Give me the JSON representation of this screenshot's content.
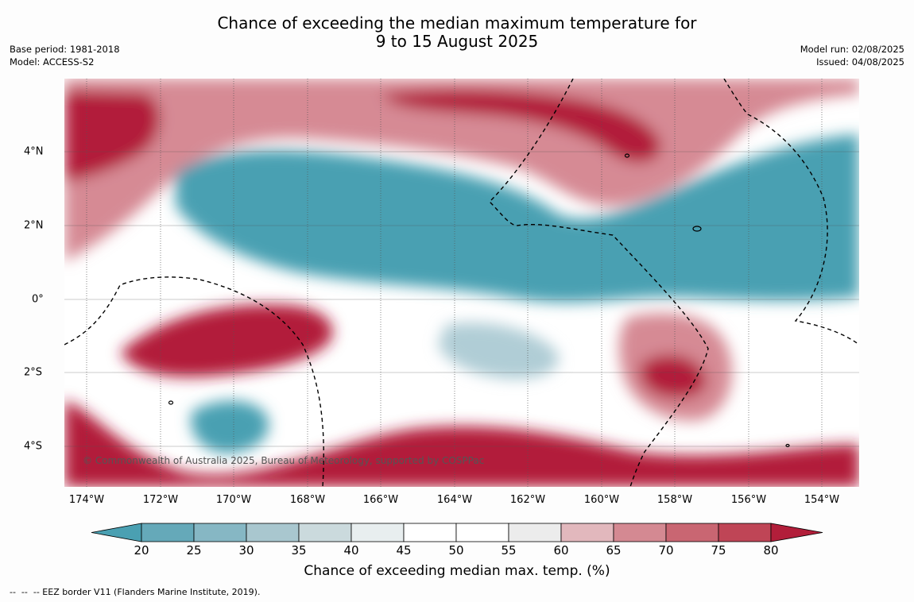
{
  "title": {
    "line1": "Chance of exceeding the median maximum temperature for",
    "line2": "9 to 15 August 2025"
  },
  "meta_left": {
    "base_period": "Base period: 1981-2018",
    "model": "Model: ACCESS-S2"
  },
  "meta_right": {
    "model_run": "Model run: 02/08/2025",
    "issued": "Issued: 04/08/2025"
  },
  "map": {
    "lon_labels": [
      "174°W",
      "172°W",
      "170°W",
      "168°W",
      "166°W",
      "164°W",
      "162°W",
      "160°W",
      "158°W",
      "156°W",
      "154°W"
    ],
    "lat_labels": [
      "4°N",
      "2°N",
      "0°",
      "2°S",
      "4°S"
    ],
    "copyright": "© Commonwealth of Australia 2025, Bureau of Meteorology, supported by COSPPac",
    "colors": {
      "below": "#4aa0b2",
      "low": "#b0cdd6",
      "neutral": "#ffffff",
      "high": "#d68a94",
      "above": "#b21e3a"
    }
  },
  "colorbar": {
    "ticks": [
      "20",
      "25",
      "30",
      "35",
      "40",
      "45",
      "50",
      "55",
      "60",
      "65",
      "70",
      "75",
      "80"
    ],
    "colors": [
      "#65a9b9",
      "#86b7c4",
      "#a9c7cf",
      "#cbdadd",
      "#e8eeef",
      "#ffffff",
      "#ffffff",
      "#ececec",
      "#e2b8bd",
      "#d48992",
      "#c96672",
      "#bf4556"
    ],
    "extend_low": "#4aa0b2",
    "extend_high": "#b21e3a",
    "label": "Chance of exceeding median max. temp. (%)"
  },
  "footnote": "--  --  -- EEZ border V11 (Flanders Marine Institute, 2019)."
}
